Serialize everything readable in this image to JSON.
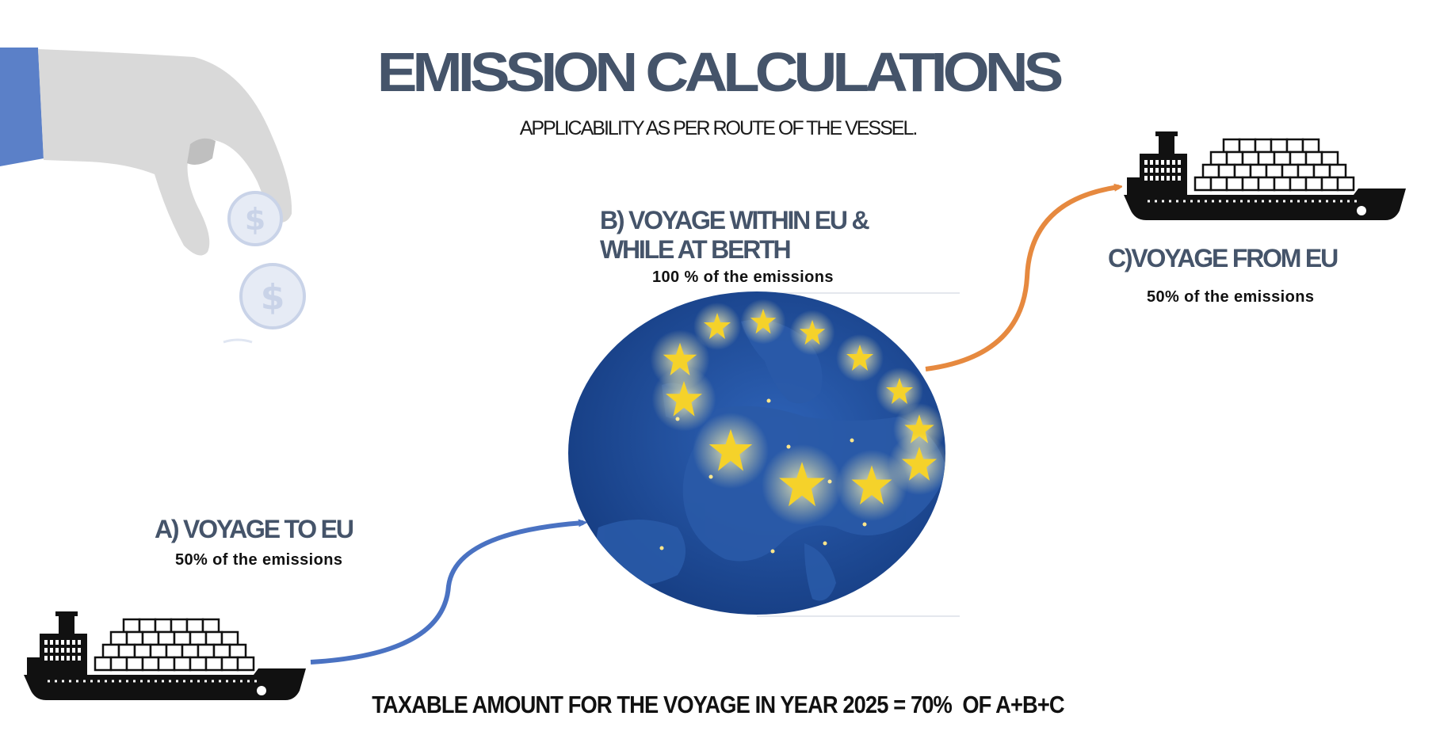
{
  "title": "EMISSION CALCULATIONS",
  "subtitle": "APPLICABILITY AS PER ROUTE OF THE VESSEL.",
  "sections": {
    "a": {
      "label": "A) VOYAGE TO EU",
      "share": "50% of the emissions"
    },
    "b": {
      "label_line1": "B) VOYAGE WITHIN EU &",
      "label_line2": "WHILE AT BERTH",
      "share": "100 % of the emissions"
    },
    "c": {
      "label": "C)VOYAGE FROM EU",
      "share": "50% of the emissions"
    }
  },
  "footer": "TAXABLE AMOUNT FOR THE VOYAGE IN YEAR 2025 = 70%  OF A+B+C",
  "icons": [
    "hand-coin-icon",
    "cargo-ship-icon",
    "eu-globe-icon"
  ],
  "colors": {
    "heading": "#45546a",
    "arrow_a": "#4a72c2",
    "arrow_c": "#e6893f",
    "globe": "#1f4f9c",
    "stars": "#f5d22a",
    "hand": "#d9d9d9",
    "sleeve": "#5b80c8"
  }
}
